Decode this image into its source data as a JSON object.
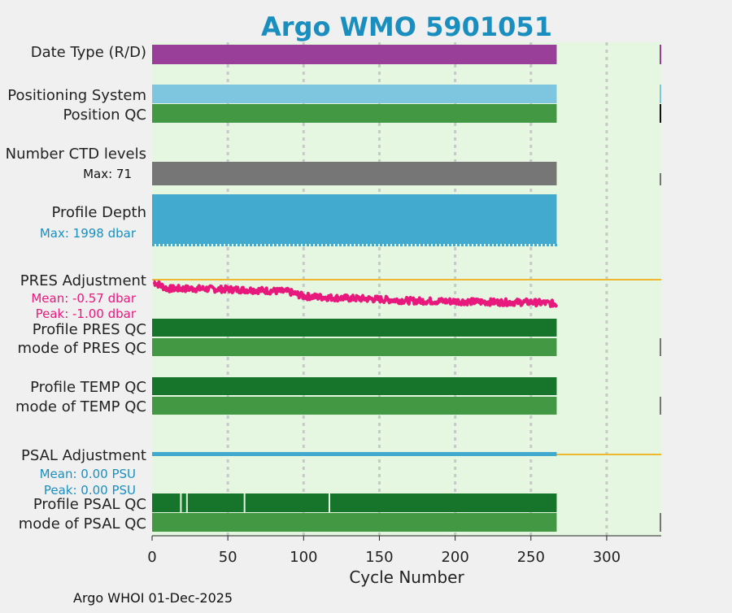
{
  "chart_data": {
    "type": "timeline",
    "title": "Argo WMO 5901051",
    "xlabel": "Cycle Number",
    "xlim": [
      0,
      336
    ],
    "xticks": [
      0,
      50,
      100,
      150,
      200,
      250,
      300
    ],
    "last_cycle": 267,
    "rows": [
      {
        "key": "date_type",
        "label": "Date Type (R/D)",
        "color": "#993f99",
        "values": "all cycles: R"
      },
      {
        "key": "positioning_system",
        "label": "Positioning System",
        "color": "#7ec5e0",
        "values": "all cycles"
      },
      {
        "key": "position_qc",
        "label": "Position QC",
        "color": "#439943",
        "values": "all cycles: 1"
      },
      {
        "key": "n_levels",
        "label": "Number CTD levels",
        "sublabel": "Max: 71",
        "color": "#767676"
      },
      {
        "key": "profile_depth",
        "label": "Profile Depth",
        "sublabel": "Max: 1998 dbar",
        "color": "#42aacf"
      },
      {
        "key": "pres_qc",
        "label": "Profile PRES QC",
        "color": "#16752a"
      },
      {
        "key": "pres_qc_mode",
        "label": "mode of PRES QC",
        "color": "#439943"
      },
      {
        "key": "temp_qc",
        "label": "Profile TEMP QC",
        "color": "#16752a"
      },
      {
        "key": "temp_qc_mode",
        "label": "mode of TEMP QC",
        "color": "#439943"
      },
      {
        "key": "psal_qc",
        "label": "Profile PSAL QC",
        "color": "#16752a",
        "gaps_at_cycles": [
          19,
          23,
          61,
          117
        ]
      },
      {
        "key": "psal_qc_mode",
        "label": "mode of PSAL QC",
        "color": "#439943"
      }
    ],
    "pres_adjustment": {
      "label": "PRES Adjustment",
      "mean": "Mean: -0.57 dbar",
      "peak": "Peak: -1.00 dbar",
      "color": "#e8197d",
      "zero_line_color": "#f0b830",
      "trend_cycles": [
        0,
        10,
        30,
        50,
        70,
        90,
        100,
        120,
        150,
        170,
        200,
        230,
        250,
        267
      ],
      "trend_values": [
        -0.05,
        -0.3,
        -0.3,
        -0.32,
        -0.35,
        -0.4,
        -0.55,
        -0.6,
        -0.65,
        -0.7,
        -0.72,
        -0.75,
        -0.75,
        -0.8
      ],
      "noise_amplitude_dbar": 0.22
    },
    "psal_adjustment": {
      "label": "PSAL Adjustment",
      "mean": "Mean: 0.00 PSU",
      "peak": "Peak: 0.00 PSU",
      "color": "#42aacf",
      "zero_line_color": "#f0b830"
    },
    "colors": {
      "background": "#e5f7e0",
      "title": "#1a8fbf",
      "grid": "#c8c8c8",
      "subtext_blue": "#1a8fbf",
      "subtext_pink": "#e8197d"
    }
  },
  "footer": "Argo WHOI 01-Dec-2025"
}
